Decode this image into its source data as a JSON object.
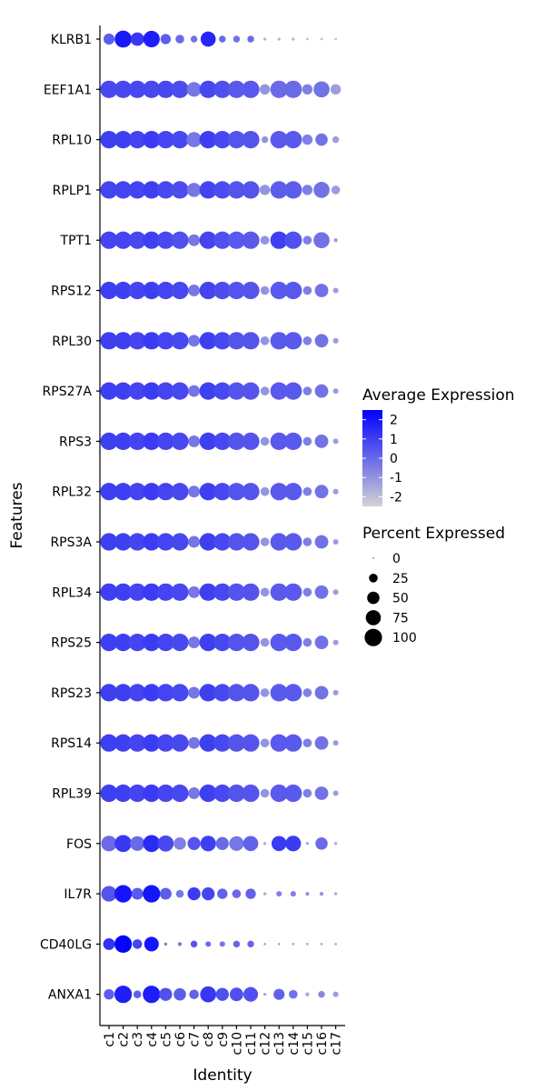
{
  "chart_data": {
    "type": "dotplot",
    "xlabel": "Identity",
    "ylabel": "Features",
    "identities": [
      "c1",
      "c2",
      "c3",
      "c4",
      "c5",
      "c6",
      "c7",
      "c8",
      "c9",
      "c10",
      "c11",
      "c12",
      "c13",
      "c14",
      "c15",
      "c16",
      "c17"
    ],
    "features": [
      "KLRB1",
      "EEF1A1",
      "RPL10",
      "RPLP1",
      "TPT1",
      "RPS12",
      "RPL30",
      "RPS27A",
      "RPS3",
      "RPL32",
      "RPS3A",
      "RPL34",
      "RPS25",
      "RPS23",
      "RPS14",
      "RPL39",
      "FOS",
      "IL7R",
      "CD40LG",
      "ANXA1"
    ],
    "percent_expressed": [
      [
        40,
        95,
        60,
        90,
        35,
        25,
        15,
        75,
        15,
        15,
        15,
        3,
        3,
        3,
        2,
        2,
        2
      ],
      [
        100,
        100,
        100,
        100,
        100,
        100,
        70,
        100,
        100,
        100,
        100,
        35,
        100,
        100,
        35,
        85,
        35
      ],
      [
        100,
        100,
        100,
        100,
        100,
        100,
        75,
        100,
        100,
        100,
        100,
        15,
        100,
        100,
        35,
        50,
        15
      ],
      [
        100,
        100,
        100,
        100,
        100,
        100,
        65,
        100,
        100,
        100,
        100,
        35,
        100,
        100,
        35,
        85,
        25
      ],
      [
        100,
        100,
        100,
        100,
        100,
        100,
        45,
        100,
        100,
        100,
        100,
        25,
        100,
        100,
        25,
        85,
        5
      ],
      [
        100,
        100,
        100,
        100,
        100,
        100,
        45,
        100,
        100,
        100,
        100,
        25,
        100,
        100,
        25,
        60,
        10
      ],
      [
        100,
        100,
        100,
        100,
        100,
        100,
        45,
        100,
        100,
        100,
        100,
        25,
        100,
        100,
        25,
        60,
        10
      ],
      [
        100,
        100,
        100,
        100,
        100,
        100,
        45,
        100,
        100,
        100,
        100,
        25,
        100,
        100,
        25,
        60,
        10
      ],
      [
        100,
        100,
        100,
        100,
        100,
        100,
        45,
        100,
        100,
        100,
        100,
        25,
        100,
        100,
        25,
        60,
        10
      ],
      [
        100,
        100,
        100,
        100,
        100,
        100,
        45,
        100,
        100,
        100,
        100,
        25,
        100,
        100,
        25,
        60,
        10
      ],
      [
        100,
        100,
        100,
        100,
        100,
        100,
        45,
        100,
        100,
        100,
        100,
        25,
        100,
        100,
        25,
        60,
        10
      ],
      [
        100,
        100,
        100,
        100,
        100,
        100,
        45,
        100,
        100,
        100,
        100,
        25,
        100,
        100,
        25,
        60,
        10
      ],
      [
        100,
        100,
        100,
        100,
        100,
        100,
        45,
        100,
        100,
        100,
        100,
        25,
        100,
        100,
        25,
        60,
        10
      ],
      [
        100,
        100,
        100,
        100,
        100,
        100,
        45,
        100,
        100,
        100,
        100,
        25,
        100,
        100,
        25,
        60,
        10
      ],
      [
        100,
        100,
        100,
        100,
        100,
        100,
        45,
        100,
        100,
        100,
        100,
        25,
        100,
        100,
        25,
        60,
        10
      ],
      [
        100,
        100,
        100,
        100,
        100,
        100,
        45,
        100,
        100,
        100,
        100,
        25,
        100,
        100,
        25,
        60,
        10
      ],
      [
        80,
        95,
        70,
        95,
        85,
        50,
        55,
        80,
        55,
        70,
        75,
        3,
        75,
        80,
        3,
        50,
        3
      ],
      [
        80,
        100,
        45,
        100,
        45,
        20,
        55,
        55,
        35,
        25,
        35,
        3,
        10,
        10,
        5,
        5,
        3
      ],
      [
        45,
        100,
        30,
        70,
        3,
        5,
        15,
        10,
        10,
        15,
        15,
        2,
        2,
        2,
        2,
        2,
        2
      ],
      [
        35,
        100,
        20,
        100,
        55,
        50,
        30,
        85,
        55,
        60,
        70,
        3,
        40,
        25,
        5,
        15,
        10
      ]
    ],
    "average_expression": [
      [
        0.3,
        1.9,
        1.2,
        1.8,
        0.3,
        0.0,
        -0.2,
        1.6,
        0.0,
        -0.2,
        0.0,
        -1.8,
        -1.8,
        -1.8,
        -2.0,
        -2.0,
        -2.0
      ],
      [
        0.8,
        0.8,
        0.8,
        0.8,
        0.8,
        0.7,
        -0.3,
        0.8,
        0.6,
        0.4,
        0.4,
        -1.0,
        0.0,
        0.0,
        -0.5,
        -0.2,
        -1.2
      ],
      [
        1.0,
        1.0,
        0.9,
        1.1,
        0.9,
        0.8,
        -0.3,
        1.0,
        0.8,
        0.5,
        0.5,
        -1.0,
        0.4,
        0.4,
        -0.5,
        -0.2,
        -1.2
      ],
      [
        0.9,
        0.9,
        0.9,
        1.0,
        0.8,
        0.7,
        -0.3,
        0.9,
        0.7,
        0.5,
        0.5,
        -1.0,
        0.3,
        0.3,
        -0.5,
        -0.2,
        -1.2
      ],
      [
        0.9,
        0.9,
        0.8,
        1.0,
        0.8,
        0.6,
        -0.3,
        0.9,
        0.6,
        0.4,
        0.4,
        -1.0,
        1.0,
        0.6,
        -0.5,
        -0.2,
        -1.2
      ],
      [
        1.0,
        1.0,
        0.9,
        1.0,
        0.9,
        0.8,
        -0.3,
        0.9,
        0.7,
        0.5,
        0.5,
        -1.0,
        0.4,
        0.4,
        -0.5,
        -0.2,
        -1.2
      ],
      [
        1.0,
        1.0,
        0.9,
        1.1,
        0.9,
        0.8,
        -0.3,
        1.0,
        0.8,
        0.5,
        0.5,
        -1.0,
        0.4,
        0.4,
        -0.5,
        -0.2,
        -1.2
      ],
      [
        1.0,
        1.0,
        0.9,
        1.1,
        0.9,
        0.8,
        -0.3,
        1.0,
        0.8,
        0.5,
        0.5,
        -1.0,
        0.4,
        0.4,
        -0.5,
        -0.2,
        -1.2
      ],
      [
        1.0,
        1.0,
        0.9,
        1.1,
        0.9,
        0.8,
        -0.3,
        1.0,
        0.8,
        0.5,
        0.5,
        -1.0,
        0.4,
        0.4,
        -0.5,
        -0.2,
        -1.2
      ],
      [
        1.0,
        1.0,
        0.9,
        1.1,
        0.9,
        0.8,
        -0.3,
        1.0,
        0.8,
        0.5,
        0.5,
        -1.0,
        0.4,
        0.4,
        -0.5,
        -0.2,
        -1.2
      ],
      [
        1.0,
        1.0,
        0.9,
        1.1,
        0.9,
        0.8,
        -0.3,
        1.0,
        0.8,
        0.5,
        0.5,
        -1.0,
        0.4,
        0.4,
        -0.5,
        -0.2,
        -1.2
      ],
      [
        1.0,
        1.0,
        0.9,
        1.1,
        0.9,
        0.8,
        -0.3,
        1.0,
        0.8,
        0.5,
        0.5,
        -1.0,
        0.4,
        0.4,
        -0.5,
        -0.2,
        -1.2
      ],
      [
        1.0,
        1.0,
        0.9,
        1.1,
        0.9,
        0.8,
        -0.3,
        1.0,
        0.8,
        0.5,
        0.5,
        -1.0,
        0.4,
        0.4,
        -0.5,
        -0.2,
        -1.2
      ],
      [
        1.0,
        1.0,
        0.9,
        1.1,
        0.9,
        0.8,
        -0.3,
        1.0,
        0.8,
        0.5,
        0.5,
        -1.0,
        0.4,
        0.4,
        -0.5,
        -0.2,
        -1.2
      ],
      [
        1.0,
        1.0,
        0.9,
        1.1,
        0.9,
        0.8,
        -0.3,
        1.0,
        0.8,
        0.5,
        0.5,
        -1.0,
        0.4,
        0.4,
        -0.5,
        -0.2,
        -1.2
      ],
      [
        1.0,
        1.0,
        0.9,
        1.1,
        0.9,
        0.8,
        -0.3,
        1.0,
        0.8,
        0.5,
        0.5,
        -1.0,
        0.4,
        0.4,
        -0.5,
        -0.2,
        -1.2
      ],
      [
        0.0,
        1.2,
        0.0,
        1.5,
        0.8,
        -0.5,
        0.5,
        1.0,
        0.0,
        -0.3,
        0.2,
        -1.5,
        1.1,
        1.1,
        -1.5,
        0.0,
        -1.5
      ],
      [
        0.5,
        2.0,
        0.4,
        2.0,
        0.3,
        -0.3,
        1.1,
        0.9,
        0.2,
        0.0,
        0.2,
        -1.5,
        -0.5,
        -0.5,
        -1.0,
        -1.0,
        -1.5
      ],
      [
        1.3,
        2.4,
        0.9,
        2.0,
        -0.3,
        -0.3,
        0.5,
        0.0,
        -0.3,
        0.1,
        0.1,
        -1.5,
        -1.5,
        -1.5,
        -1.5,
        -1.5,
        -1.5
      ],
      [
        0.3,
        1.8,
        0.2,
        1.8,
        0.6,
        0.3,
        0.2,
        1.2,
        0.6,
        0.6,
        0.6,
        -1.5,
        0.2,
        -0.2,
        -1.5,
        -0.7,
        -1.2
      ]
    ],
    "color_scale": {
      "low": "#D3D3D3",
      "high": "#0000FF",
      "range": [
        -2.5,
        2.5
      ]
    },
    "legend_color": {
      "title": "Average Expression",
      "ticks": [
        "2",
        "1",
        "0",
        "-1",
        "-2"
      ]
    },
    "legend_size": {
      "title": "Percent Expressed",
      "ticks": [
        "0",
        "25",
        "50",
        "75",
        "100"
      ]
    }
  }
}
